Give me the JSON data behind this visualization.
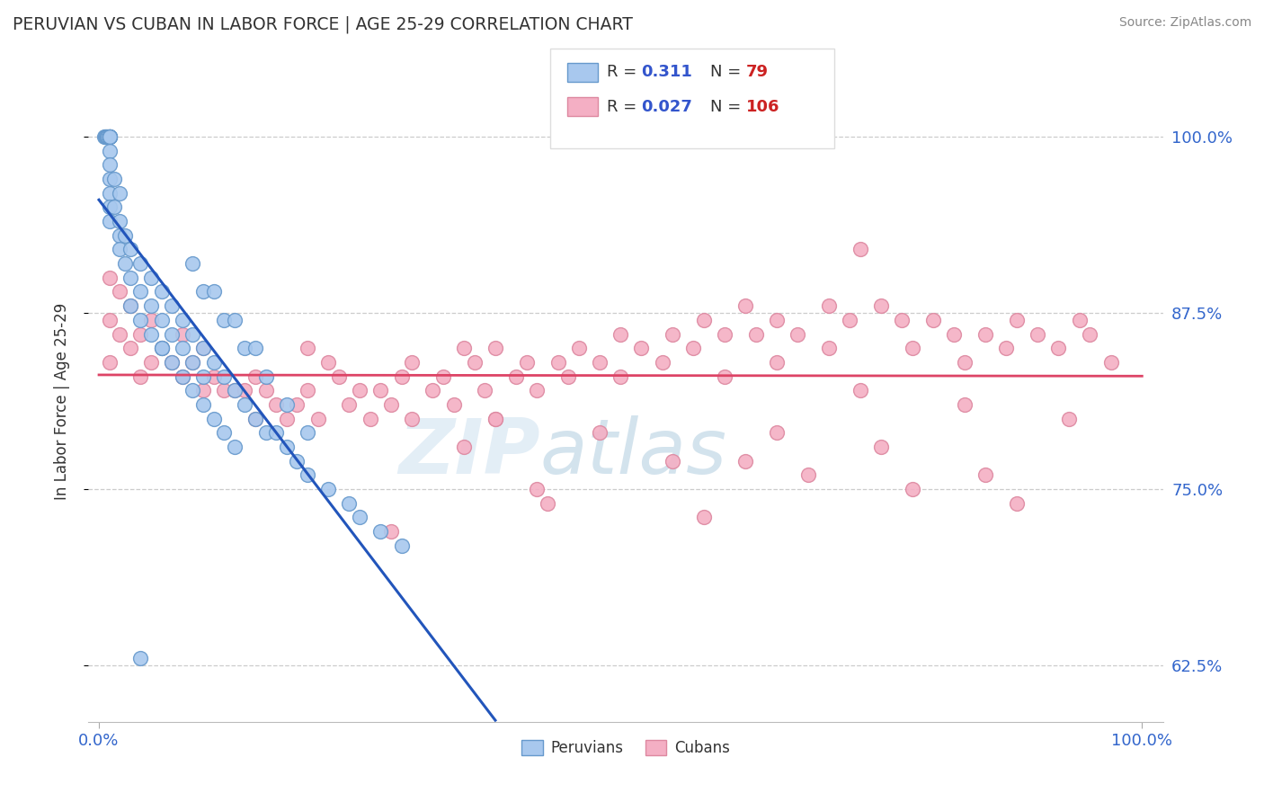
{
  "title": "PERUVIAN VS CUBAN IN LABOR FORCE | AGE 25-29 CORRELATION CHART",
  "source_text": "Source: ZipAtlas.com",
  "ylabel": "In Labor Force | Age 25-29",
  "xlim": [
    -0.01,
    1.02
  ],
  "ylim": [
    0.585,
    1.04
  ],
  "yticks": [
    0.625,
    0.75,
    0.875,
    1.0
  ],
  "ytick_labels": [
    "62.5%",
    "75.0%",
    "87.5%",
    "100.0%"
  ],
  "xtick_labels": [
    "0.0%",
    "100.0%"
  ],
  "peruvian_color": "#a8c8ee",
  "peruvian_edge": "#6699cc",
  "cuban_color": "#f4afc4",
  "cuban_edge": "#dd88a0",
  "line_peru_color": "#2255bb",
  "line_cuban_color": "#dd4466",
  "peruvian_R": 0.311,
  "peruvian_N": 79,
  "cuban_R": 0.027,
  "cuban_N": 106,
  "legend_R_color": "#3355cc",
  "legend_N_color": "#cc2222",
  "watermark_zip_color": "#c8dff0",
  "watermark_atlas_color": "#b0c8e0",
  "peru_x": [
    0.005,
    0.006,
    0.007,
    0.008,
    0.009,
    0.01,
    0.01,
    0.01,
    0.01,
    0.01,
    0.01,
    0.01,
    0.01,
    0.01,
    0.01,
    0.01,
    0.01,
    0.015,
    0.015,
    0.02,
    0.02,
    0.02,
    0.02,
    0.025,
    0.025,
    0.03,
    0.03,
    0.03,
    0.04,
    0.04,
    0.04,
    0.05,
    0.05,
    0.05,
    0.06,
    0.06,
    0.06,
    0.07,
    0.07,
    0.08,
    0.08,
    0.09,
    0.09,
    0.1,
    0.1,
    0.11,
    0.12,
    0.13,
    0.14,
    0.15,
    0.16,
    0.17,
    0.18,
    0.19,
    0.2,
    0.22,
    0.24,
    0.25,
    0.27,
    0.29,
    0.1,
    0.12,
    0.14,
    0.16,
    0.18,
    0.2,
    0.09,
    0.11,
    0.13,
    0.15,
    0.06,
    0.07,
    0.08,
    0.09,
    0.1,
    0.11,
    0.12,
    0.13,
    0.04
  ],
  "peru_y": [
    1.0,
    1.0,
    1.0,
    1.0,
    1.0,
    1.0,
    1.0,
    1.0,
    1.0,
    1.0,
    1.0,
    0.99,
    0.98,
    0.97,
    0.96,
    0.95,
    0.94,
    0.97,
    0.95,
    0.96,
    0.94,
    0.93,
    0.92,
    0.93,
    0.91,
    0.92,
    0.9,
    0.88,
    0.91,
    0.89,
    0.87,
    0.9,
    0.88,
    0.86,
    0.89,
    0.87,
    0.85,
    0.88,
    0.86,
    0.87,
    0.85,
    0.86,
    0.84,
    0.85,
    0.83,
    0.84,
    0.83,
    0.82,
    0.81,
    0.8,
    0.79,
    0.79,
    0.78,
    0.77,
    0.76,
    0.75,
    0.74,
    0.73,
    0.72,
    0.71,
    0.89,
    0.87,
    0.85,
    0.83,
    0.81,
    0.79,
    0.91,
    0.89,
    0.87,
    0.85,
    0.85,
    0.84,
    0.83,
    0.82,
    0.81,
    0.8,
    0.79,
    0.78,
    0.63
  ],
  "cuban_x": [
    0.01,
    0.01,
    0.01,
    0.02,
    0.02,
    0.03,
    0.03,
    0.04,
    0.04,
    0.05,
    0.05,
    0.06,
    0.07,
    0.08,
    0.08,
    0.09,
    0.1,
    0.1,
    0.11,
    0.12,
    0.13,
    0.14,
    0.15,
    0.15,
    0.16,
    0.17,
    0.18,
    0.19,
    0.2,
    0.2,
    0.21,
    0.22,
    0.23,
    0.24,
    0.25,
    0.26,
    0.27,
    0.28,
    0.29,
    0.3,
    0.3,
    0.32,
    0.33,
    0.34,
    0.35,
    0.36,
    0.37,
    0.38,
    0.38,
    0.4,
    0.41,
    0.42,
    0.44,
    0.45,
    0.46,
    0.48,
    0.5,
    0.5,
    0.52,
    0.54,
    0.55,
    0.57,
    0.58,
    0.6,
    0.6,
    0.62,
    0.63,
    0.65,
    0.65,
    0.67,
    0.7,
    0.7,
    0.72,
    0.73,
    0.75,
    0.77,
    0.78,
    0.8,
    0.82,
    0.83,
    0.85,
    0.87,
    0.88,
    0.9,
    0.92,
    0.94,
    0.95,
    0.97,
    0.35,
    0.42,
    0.55,
    0.65,
    0.75,
    0.85,
    0.38,
    0.48,
    0.62,
    0.73,
    0.83,
    0.93,
    0.28,
    0.43,
    0.58,
    0.68,
    0.78,
    0.88
  ],
  "cuban_y": [
    0.9,
    0.87,
    0.84,
    0.89,
    0.86,
    0.88,
    0.85,
    0.86,
    0.83,
    0.87,
    0.84,
    0.85,
    0.84,
    0.86,
    0.83,
    0.84,
    0.85,
    0.82,
    0.83,
    0.82,
    0.82,
    0.82,
    0.83,
    0.8,
    0.82,
    0.81,
    0.8,
    0.81,
    0.85,
    0.82,
    0.8,
    0.84,
    0.83,
    0.81,
    0.82,
    0.8,
    0.82,
    0.81,
    0.83,
    0.84,
    0.8,
    0.82,
    0.83,
    0.81,
    0.85,
    0.84,
    0.82,
    0.85,
    0.8,
    0.83,
    0.84,
    0.82,
    0.84,
    0.83,
    0.85,
    0.84,
    0.86,
    0.83,
    0.85,
    0.84,
    0.86,
    0.85,
    0.87,
    0.86,
    0.83,
    0.88,
    0.86,
    0.87,
    0.84,
    0.86,
    0.88,
    0.85,
    0.87,
    0.92,
    0.88,
    0.87,
    0.85,
    0.87,
    0.86,
    0.84,
    0.86,
    0.85,
    0.87,
    0.86,
    0.85,
    0.87,
    0.86,
    0.84,
    0.78,
    0.75,
    0.77,
    0.79,
    0.78,
    0.76,
    0.8,
    0.79,
    0.77,
    0.82,
    0.81,
    0.8,
    0.72,
    0.74,
    0.73,
    0.76,
    0.75,
    0.74
  ]
}
